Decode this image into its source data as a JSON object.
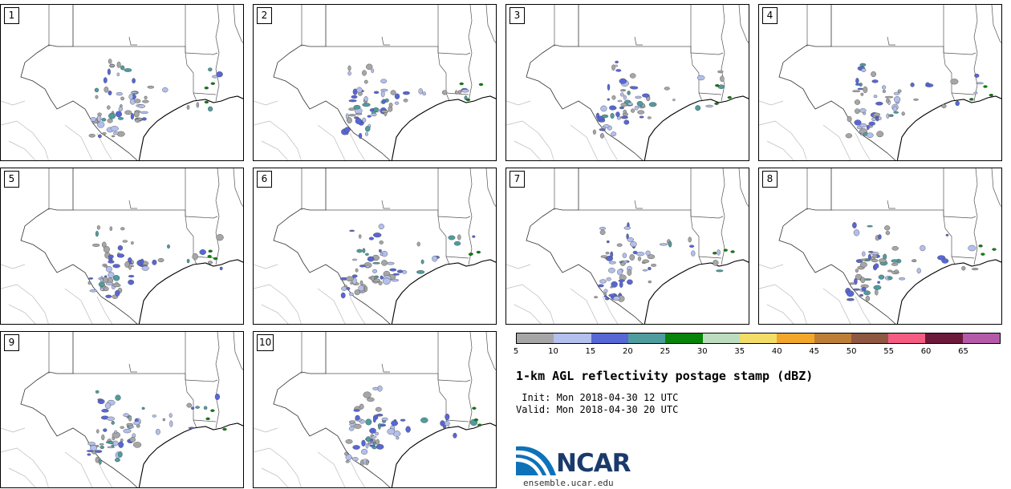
{
  "panels": [
    {
      "number": "1"
    },
    {
      "number": "2"
    },
    {
      "number": "3"
    },
    {
      "number": "4"
    },
    {
      "number": "5"
    },
    {
      "number": "6"
    },
    {
      "number": "7"
    },
    {
      "number": "8"
    },
    {
      "number": "9"
    },
    {
      "number": "10"
    }
  ],
  "colorbar": {
    "colors": [
      "#a6a6a6",
      "#b3bfec",
      "#5767d6",
      "#4e9c9e",
      "#098309",
      "#bcdcbf",
      "#f1dd68",
      "#f2a72a",
      "#bd7f37",
      "#8e5842",
      "#f45c81",
      "#6c1a3c",
      "#b45aa9"
    ],
    "tick_labels": [
      "5",
      "10",
      "15",
      "20",
      "25",
      "30",
      "35",
      "40",
      "45",
      "50",
      "55",
      "60",
      "65"
    ]
  },
  "title": "1-km AGL reflectivity postage stamp (dBZ)",
  "init_line": " Init: Mon 2018-04-30 12 UTC",
  "valid_line": "Valid: Mon 2018-04-30 20 UTC",
  "logo_text": "NCAR",
  "website": "ensemble.ucar.edu"
}
